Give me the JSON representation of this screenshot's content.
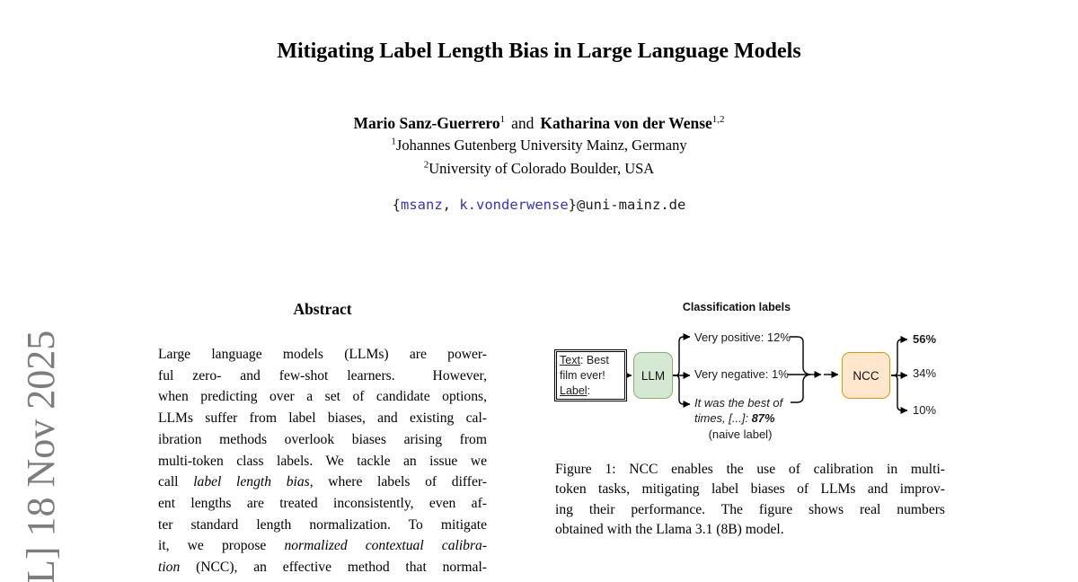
{
  "watermark": {
    "text": "L] 18 Nov 2025",
    "color": "#7d7d7d"
  },
  "header": {
    "title": "Mitigating Label Length Bias in Large Language Models",
    "author1": "Mario Sanz-Guerrero",
    "author1_sup": "1",
    "and_text": "and",
    "author2": "Katharina von der Wense",
    "author2_sup": "1,2",
    "affil1_sup": "1",
    "affil1": "Johannes Gutenberg University Mainz, Germany",
    "affil2_sup": "2",
    "affil2": "University of Colorado Boulder, USA",
    "email": {
      "open": "{",
      "user1": "msanz",
      "sep": ", ",
      "user2": "k.vonderwense",
      "rest": "}@uni-mainz.de",
      "link_color": "#3333cc"
    }
  },
  "abstract": {
    "heading": "Abstract",
    "lines": [
      [
        {
          "t": "Large language models (LLMs) are power-"
        }
      ],
      [
        {
          "t": "ful zero- and few-shot learners.  However,"
        }
      ],
      [
        {
          "t": "when predicting over a set of candidate options,"
        }
      ],
      [
        {
          "t": "LLMs suffer from label biases, and existing cal-"
        }
      ],
      [
        {
          "t": "ibration methods overlook biases arising from"
        }
      ],
      [
        {
          "t": "multi-token class labels. We tackle an issue we"
        }
      ],
      [
        {
          "t": "call "
        },
        {
          "t": "label length bias",
          "i": true
        },
        {
          "t": ", where labels of differ-"
        }
      ],
      [
        {
          "t": "ent lengths are treated inconsistently, even af-"
        }
      ],
      [
        {
          "t": "ter standard length normalization. To mitigate"
        }
      ],
      [
        {
          "t": "it, we propose "
        },
        {
          "t": "normalized contextual calibra-",
          "i": true
        }
      ],
      [
        {
          "t": "tion",
          "i": true
        },
        {
          "t": " (NCC), an effective method that normal-"
        }
      ]
    ]
  },
  "figure": {
    "header": "Classification labels",
    "input_box": {
      "l1_label": "Text",
      "l1_rest": ": Best",
      "l2": "film ever!",
      "l3_label": "Label",
      "l3_rest": ":"
    },
    "llm_box": {
      "label": "LLM",
      "fill": "#d5e8d4",
      "border": "#82b366"
    },
    "ncc_box": {
      "label": "NCC",
      "fill": "#ffe6cc",
      "border": "#d79b00"
    },
    "branch1": "Very positive: 12%",
    "branch2": "Very negative: 1%",
    "branch3_line1": "It was the best of",
    "branch3_line2a": "times, [...]: ",
    "branch3_line2b": "87%",
    "branch3_note": "(naive label)",
    "outputs": {
      "o1": "56%",
      "o2": "34%",
      "o3": "10%"
    }
  },
  "caption": {
    "lines": [
      "Figure 1: NCC enables the use of calibration in multi-",
      "token tasks, mitigating label biases of LLMs and improv-",
      "ing their performance. The figure shows real numbers",
      "obtained with the Llama 3.1 (8B) model."
    ]
  }
}
